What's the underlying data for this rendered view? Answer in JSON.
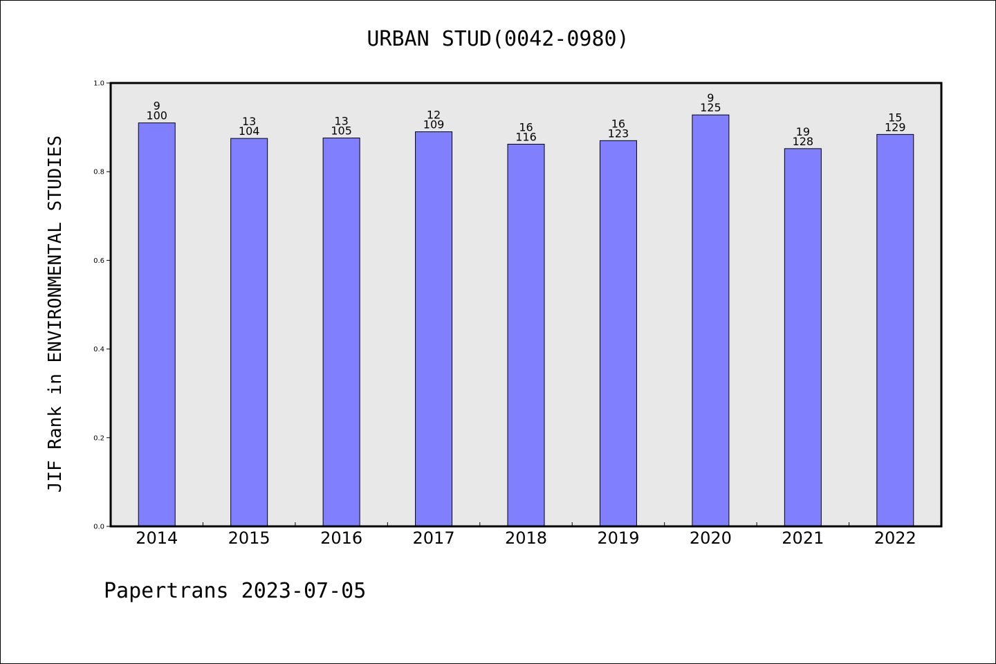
{
  "chart_data": {
    "type": "bar",
    "title": "URBAN STUD(0042-0980)",
    "xlabel": "",
    "ylabel": "JIF Rank in ENVIRONMENTAL STUDIES",
    "ylim": [
      0.0,
      1.0
    ],
    "yticks": [
      "0.0",
      "0.2",
      "0.4",
      "0.6",
      "0.8",
      "1.0"
    ],
    "categories": [
      "2014",
      "2015",
      "2016",
      "2017",
      "2018",
      "2019",
      "2020",
      "2021",
      "2022"
    ],
    "values": [
      0.91,
      0.875,
      0.876,
      0.89,
      0.862,
      0.87,
      0.928,
      0.852,
      0.884
    ],
    "rank": [
      "9",
      "13",
      "13",
      "12",
      "16",
      "16",
      "9",
      "19",
      "15"
    ],
    "total": [
      "100",
      "104",
      "105",
      "109",
      "116",
      "123",
      "125",
      "128",
      "129"
    ],
    "bar_color": "#8080ff",
    "plot_background": "#e8e8e8",
    "grid": false,
    "legend": false
  },
  "footer": {
    "text": "Papertrans 2023-07-05"
  }
}
